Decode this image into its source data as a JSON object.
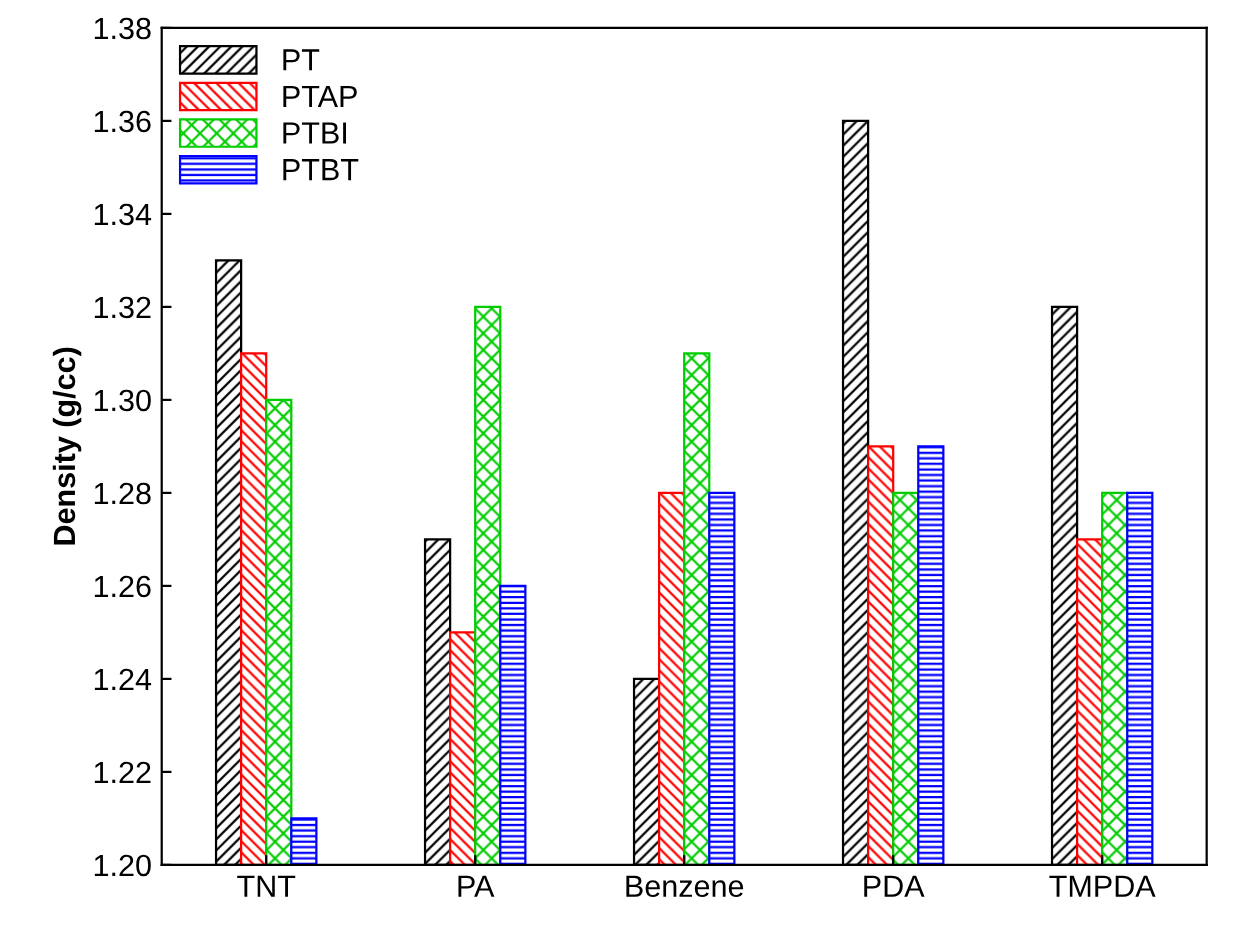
{
  "chart_data": {
    "type": "bar",
    "ylabel": "Density (g/cc)",
    "categories": [
      "TNT",
      "PA",
      "Benzene",
      "PDA",
      "TMPDA"
    ],
    "series": [
      {
        "name": "PT",
        "color": "#000000",
        "values": [
          1.33,
          1.27,
          1.24,
          1.36,
          1.32
        ]
      },
      {
        "name": "PTAP",
        "color": "#ff0000",
        "values": [
          1.31,
          1.25,
          1.28,
          1.29,
          1.27
        ]
      },
      {
        "name": "PTBI",
        "color": "#00cc00",
        "values": [
          1.3,
          1.32,
          1.31,
          1.28,
          1.28
        ]
      },
      {
        "name": "PTBT",
        "color": "#0000ff",
        "values": [
          1.21,
          1.26,
          1.28,
          1.29,
          1.28
        ]
      }
    ],
    "ylim": [
      1.2,
      1.38
    ],
    "yticks": [
      {
        "value": 1.2,
        "label": "1.20"
      },
      {
        "value": 1.22,
        "label": "1.22"
      },
      {
        "value": 1.24,
        "label": "1.24"
      },
      {
        "value": 1.26,
        "label": "1.26"
      },
      {
        "value": 1.28,
        "label": "1.28"
      },
      {
        "value": 1.3,
        "label": "1.30"
      },
      {
        "value": 1.32,
        "label": "1.32"
      },
      {
        "value": 1.34,
        "label": "1.34"
      },
      {
        "value": 1.36,
        "label": "1.36"
      },
      {
        "value": 1.38,
        "label": "1.38"
      }
    ],
    "legend": "top left",
    "grid": false
  }
}
